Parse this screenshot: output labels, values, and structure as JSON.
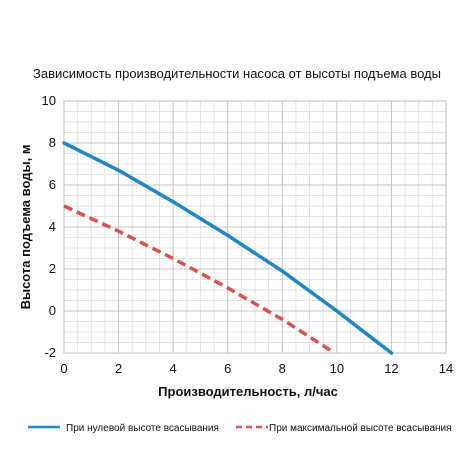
{
  "chart_data": {
    "type": "line",
    "title": "Зависимость производительности насоса от высоты подъема воды",
    "xlabel": "Производительность, л/час",
    "ylabel": "Высота подъема воды, м",
    "xlim": [
      0,
      14
    ],
    "ylim": [
      -2,
      10
    ],
    "xticks": [
      "0",
      "2",
      "4",
      "6",
      "8",
      "10",
      "12",
      "14"
    ],
    "yticks": [
      "-2",
      "0",
      "2",
      "4",
      "6",
      "8",
      "10"
    ],
    "grid": true,
    "legend_position": "bottom",
    "series": [
      {
        "name": "При нулевой высоте всасывания",
        "style": "solid",
        "color": "#1e88c7",
        "x": [
          0,
          2,
          4,
          6,
          8,
          10,
          12
        ],
        "y": [
          8,
          6.7,
          5.2,
          3.6,
          1.9,
          0,
          -2
        ]
      },
      {
        "name": "При максимальной высоте всасывания",
        "style": "dashed",
        "color": "#d9534f",
        "x": [
          0,
          2,
          4,
          6,
          8,
          9.8
        ],
        "y": [
          5,
          3.8,
          2.5,
          1.1,
          -0.4,
          -1.9
        ]
      }
    ]
  }
}
